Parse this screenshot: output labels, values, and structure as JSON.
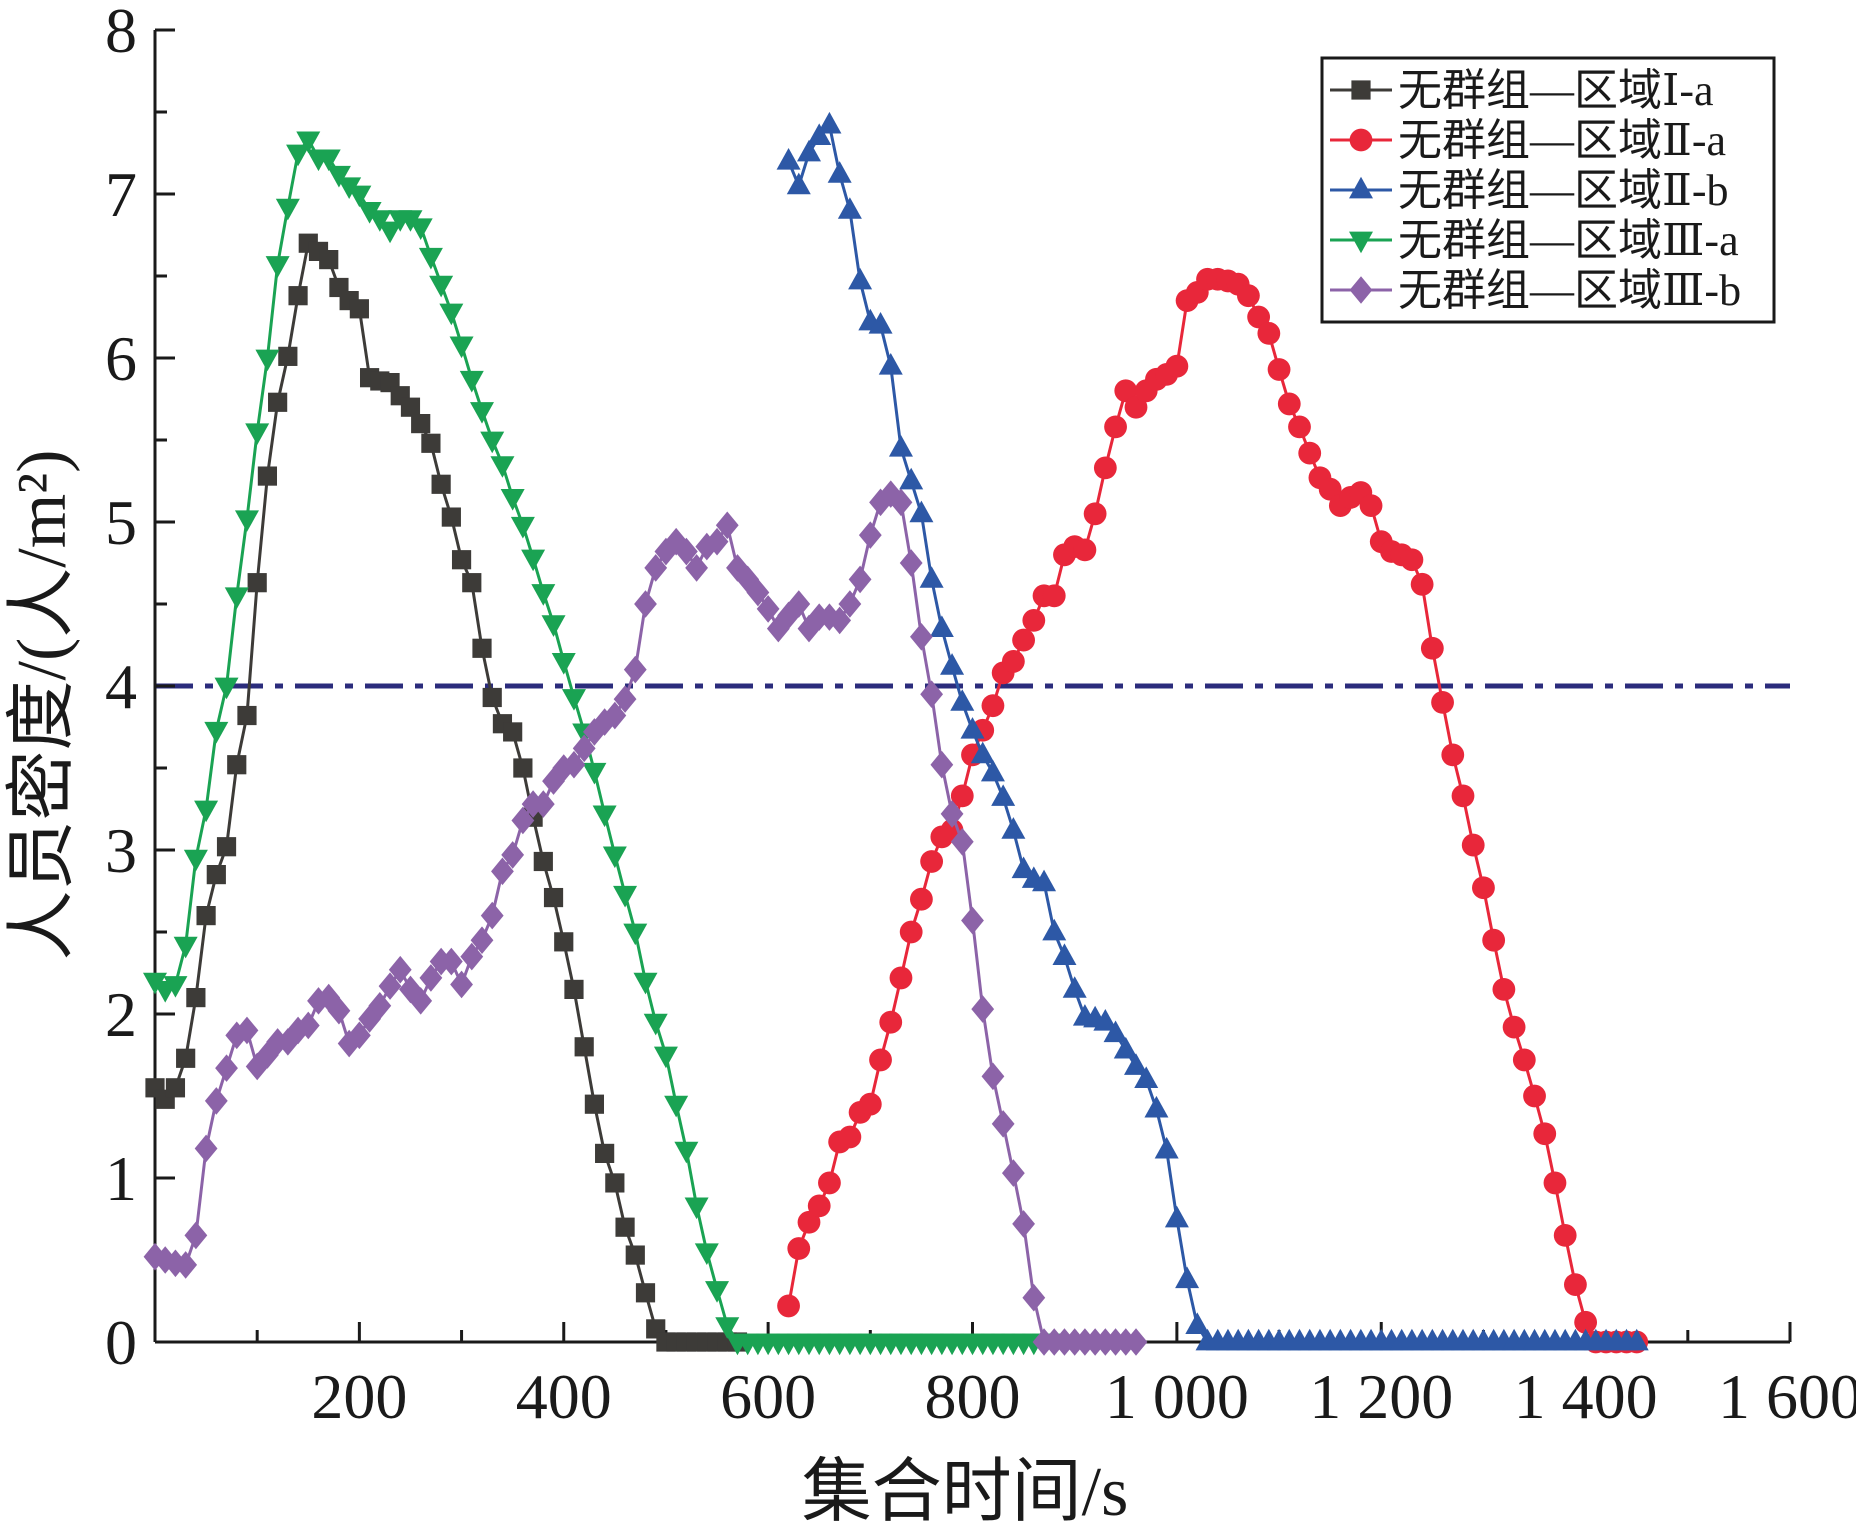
{
  "chart_data": {
    "type": "line",
    "xlabel": "集合时间/s",
    "ylabel": "人员密度/(人/m²)",
    "xlim": [
      0,
      1600
    ],
    "ylim": [
      0,
      8
    ],
    "x_ticks": [
      200,
      400,
      600,
      800,
      1000,
      1200,
      1400,
      1600
    ],
    "x_tick_labels": [
      "200",
      "400",
      "600",
      "800",
      "1 000",
      "1 200",
      "1 400",
      "1 600"
    ],
    "y_ticks": [
      0,
      1,
      2,
      3,
      4,
      5,
      6,
      7,
      8
    ],
    "y_tick_labels": [
      "0",
      "1",
      "2",
      "3",
      "4",
      "5",
      "6",
      "7",
      "8"
    ],
    "reference_line": {
      "y": 4,
      "style": "dash-dot",
      "color": "#2b2c7c"
    },
    "legend_position": "top-right",
    "series": [
      {
        "name": "无群组—区域Ⅰ-a",
        "color": "#3d3b38",
        "marker": "square",
        "x": [
          0,
          10,
          20,
          30,
          40,
          50,
          60,
          70,
          80,
          90,
          100,
          110,
          120,
          130,
          140,
          150,
          160,
          170,
          180,
          190,
          200,
          210,
          220,
          230,
          240,
          250,
          260,
          270,
          280,
          290,
          300,
          310,
          320,
          330,
          340,
          350,
          360,
          370,
          380,
          390,
          400,
          410,
          420,
          430,
          440,
          450,
          460,
          470,
          480,
          490,
          500,
          510,
          520,
          530,
          540,
          550,
          560,
          570
        ],
        "values": [
          1.55,
          1.48,
          1.55,
          1.73,
          2.1,
          2.6,
          2.85,
          3.02,
          3.52,
          3.82,
          4.63,
          5.28,
          5.73,
          6.01,
          6.38,
          6.7,
          6.65,
          6.6,
          6.43,
          6.35,
          6.3,
          5.88,
          5.86,
          5.85,
          5.77,
          5.7,
          5.6,
          5.48,
          5.23,
          5.03,
          4.77,
          4.63,
          4.23,
          3.93,
          3.77,
          3.72,
          3.5,
          3.2,
          2.93,
          2.71,
          2.44,
          2.15,
          1.8,
          1.45,
          1.15,
          0.97,
          0.7,
          0.53,
          0.3,
          0.08,
          0.0,
          0.0,
          0.0,
          0.0,
          0.0,
          0.0,
          0.0,
          0.0
        ]
      },
      {
        "name": "无群组—区域Ⅱ-a",
        "color": "#e8273a",
        "marker": "circle",
        "x": [
          620,
          630,
          640,
          650,
          660,
          670,
          680,
          690,
          700,
          710,
          720,
          730,
          740,
          750,
          760,
          770,
          780,
          790,
          800,
          810,
          820,
          830,
          840,
          850,
          860,
          870,
          880,
          890,
          900,
          910,
          920,
          930,
          940,
          950,
          960,
          970,
          980,
          990,
          1000,
          1010,
          1020,
          1030,
          1040,
          1050,
          1060,
          1070,
          1080,
          1090,
          1100,
          1110,
          1120,
          1130,
          1140,
          1150,
          1160,
          1170,
          1180,
          1190,
          1200,
          1210,
          1220,
          1230,
          1240,
          1250,
          1260,
          1270,
          1280,
          1290,
          1300,
          1310,
          1320,
          1330,
          1340,
          1350,
          1360,
          1370,
          1380,
          1390,
          1400,
          1410,
          1420,
          1430,
          1440,
          1450
        ],
        "values": [
          0.22,
          0.57,
          0.73,
          0.83,
          0.97,
          1.22,
          1.25,
          1.4,
          1.45,
          1.72,
          1.95,
          2.22,
          2.5,
          2.7,
          2.93,
          3.08,
          3.12,
          3.33,
          3.58,
          3.73,
          3.88,
          4.08,
          4.15,
          4.28,
          4.4,
          4.55,
          4.55,
          4.8,
          4.85,
          4.83,
          5.05,
          5.33,
          5.58,
          5.8,
          5.7,
          5.8,
          5.87,
          5.9,
          5.95,
          6.35,
          6.4,
          6.48,
          6.48,
          6.47,
          6.45,
          6.38,
          6.25,
          6.15,
          5.93,
          5.72,
          5.58,
          5.42,
          5.27,
          5.2,
          5.1,
          5.15,
          5.18,
          5.1,
          4.88,
          4.82,
          4.8,
          4.77,
          4.62,
          4.23,
          3.9,
          3.58,
          3.33,
          3.03,
          2.77,
          2.45,
          2.15,
          1.92,
          1.72,
          1.5,
          1.27,
          0.97,
          0.65,
          0.35,
          0.12,
          0.0,
          0.0,
          0.0,
          0.0,
          0.0
        ]
      },
      {
        "name": "无群组—区域Ⅱ-b",
        "color": "#2d58a6",
        "marker": "triangle-up",
        "x": [
          620,
          630,
          640,
          650,
          660,
          670,
          680,
          690,
          700,
          710,
          720,
          730,
          740,
          750,
          760,
          770,
          780,
          790,
          800,
          810,
          820,
          830,
          840,
          850,
          860,
          870,
          880,
          890,
          900,
          910,
          920,
          930,
          940,
          950,
          960,
          970,
          980,
          990,
          1000,
          1010,
          1020,
          1030,
          1040,
          1050,
          1060,
          1070,
          1080,
          1090,
          1100,
          1110,
          1120,
          1130,
          1140,
          1150,
          1160,
          1170,
          1180,
          1190,
          1200,
          1210,
          1220,
          1230,
          1240,
          1250,
          1260,
          1270,
          1280,
          1290,
          1300,
          1310,
          1320,
          1330,
          1340,
          1350,
          1360,
          1370,
          1380,
          1390,
          1400,
          1410,
          1420,
          1430,
          1440,
          1450
        ],
        "values": [
          7.2,
          7.05,
          7.25,
          7.35,
          7.42,
          7.12,
          6.9,
          6.47,
          6.22,
          6.2,
          5.95,
          5.45,
          5.25,
          5.05,
          4.65,
          4.35,
          4.12,
          3.9,
          3.73,
          3.58,
          3.47,
          3.32,
          3.12,
          2.88,
          2.82,
          2.8,
          2.5,
          2.35,
          2.15,
          1.98,
          1.97,
          1.95,
          1.88,
          1.78,
          1.68,
          1.6,
          1.42,
          1.17,
          0.75,
          0.38,
          0.1,
          0.0,
          0.0,
          0.0,
          0.0,
          0.0,
          0.0,
          0.0,
          0.0,
          0.0,
          0.0,
          0.0,
          0.0,
          0.0,
          0.0,
          0.0,
          0.0,
          0.0,
          0.0,
          0.0,
          0.0,
          0.0,
          0.0,
          0.0,
          0.0,
          0.0,
          0.0,
          0.0,
          0.0,
          0.0,
          0.0,
          0.0,
          0.0,
          0.0,
          0.0,
          0.0,
          0.0,
          0.0,
          0.0,
          0.0,
          0.0,
          0.0,
          0.0,
          0.0
        ]
      },
      {
        "name": "无群组—区域Ⅲ-a",
        "color": "#1aa353",
        "marker": "triangle-down",
        "x": [
          0,
          10,
          20,
          30,
          40,
          50,
          60,
          70,
          80,
          90,
          100,
          110,
          120,
          130,
          140,
          150,
          160,
          170,
          180,
          190,
          200,
          210,
          220,
          230,
          240,
          250,
          260,
          270,
          280,
          290,
          300,
          310,
          320,
          330,
          340,
          350,
          360,
          370,
          380,
          390,
          400,
          410,
          420,
          430,
          440,
          450,
          460,
          470,
          480,
          490,
          500,
          510,
          520,
          530,
          540,
          550,
          560,
          570,
          580,
          590,
          600,
          610,
          620,
          630,
          640,
          650,
          660,
          670,
          680,
          690,
          700,
          710,
          720,
          730,
          740,
          750,
          760,
          770,
          780,
          790,
          800,
          810,
          820,
          830,
          840,
          850,
          860,
          870,
          880
        ],
        "values": [
          2.2,
          2.15,
          2.18,
          2.42,
          2.95,
          3.25,
          3.73,
          4.0,
          4.55,
          5.02,
          5.55,
          6.0,
          6.57,
          6.92,
          7.25,
          7.33,
          7.22,
          7.22,
          7.12,
          7.05,
          7.0,
          6.9,
          6.85,
          6.78,
          6.85,
          6.85,
          6.8,
          6.62,
          6.45,
          6.28,
          6.08,
          5.87,
          5.68,
          5.5,
          5.35,
          5.15,
          4.98,
          4.78,
          4.57,
          4.38,
          4.15,
          3.93,
          3.72,
          3.48,
          3.22,
          2.97,
          2.73,
          2.5,
          2.2,
          1.95,
          1.75,
          1.45,
          1.17,
          0.83,
          0.55,
          0.32,
          0.1,
          0.0,
          0.0,
          0.0,
          0.0,
          0.0,
          0.0,
          0.0,
          0.0,
          0.0,
          0.0,
          0.0,
          0.0,
          0.0,
          0.0,
          0.0,
          0.0,
          0.0,
          0.0,
          0.0,
          0.0,
          0.0,
          0.0,
          0.0,
          0.0,
          0.0,
          0.0,
          0.0,
          0.0,
          0.0,
          0.0,
          0.0,
          0.0
        ]
      },
      {
        "name": "无群组—区域Ⅲ-b",
        "color": "#8c63a8",
        "marker": "diamond",
        "x": [
          0,
          10,
          20,
          30,
          40,
          50,
          60,
          70,
          80,
          90,
          100,
          110,
          120,
          130,
          140,
          150,
          160,
          170,
          180,
          190,
          200,
          210,
          220,
          230,
          240,
          250,
          260,
          270,
          280,
          290,
          300,
          310,
          320,
          330,
          340,
          350,
          360,
          370,
          380,
          390,
          400,
          410,
          420,
          430,
          440,
          450,
          460,
          470,
          480,
          490,
          500,
          510,
          520,
          530,
          540,
          550,
          560,
          570,
          580,
          590,
          600,
          610,
          620,
          630,
          640,
          650,
          660,
          670,
          680,
          690,
          700,
          710,
          720,
          730,
          740,
          750,
          760,
          770,
          780,
          790,
          800,
          810,
          820,
          830,
          840,
          850,
          860,
          870,
          880,
          890,
          900,
          910,
          920,
          930,
          940,
          950,
          960
        ],
        "values": [
          0.52,
          0.5,
          0.48,
          0.47,
          0.65,
          1.18,
          1.47,
          1.67,
          1.87,
          1.9,
          1.68,
          1.75,
          1.83,
          1.83,
          1.9,
          1.93,
          2.08,
          2.1,
          2.02,
          1.82,
          1.87,
          1.97,
          2.05,
          2.17,
          2.27,
          2.15,
          2.08,
          2.22,
          2.32,
          2.32,
          2.18,
          2.35,
          2.45,
          2.6,
          2.87,
          2.97,
          3.18,
          3.28,
          3.28,
          3.42,
          3.5,
          3.52,
          3.62,
          3.72,
          3.78,
          3.82,
          3.92,
          4.1,
          4.5,
          4.72,
          4.82,
          4.88,
          4.82,
          4.72,
          4.85,
          4.88,
          4.98,
          4.72,
          4.65,
          4.57,
          4.47,
          4.35,
          4.43,
          4.5,
          4.35,
          4.42,
          4.42,
          4.4,
          4.5,
          4.65,
          4.92,
          5.12,
          5.17,
          5.12,
          4.75,
          4.3,
          3.95,
          3.52,
          3.22,
          3.05,
          2.57,
          2.03,
          1.62,
          1.33,
          1.03,
          0.72,
          0.27,
          0.0,
          0.0,
          0.0,
          0.0,
          0.0,
          0.0,
          0.0,
          0.0,
          0.0,
          0.0
        ]
      }
    ]
  }
}
